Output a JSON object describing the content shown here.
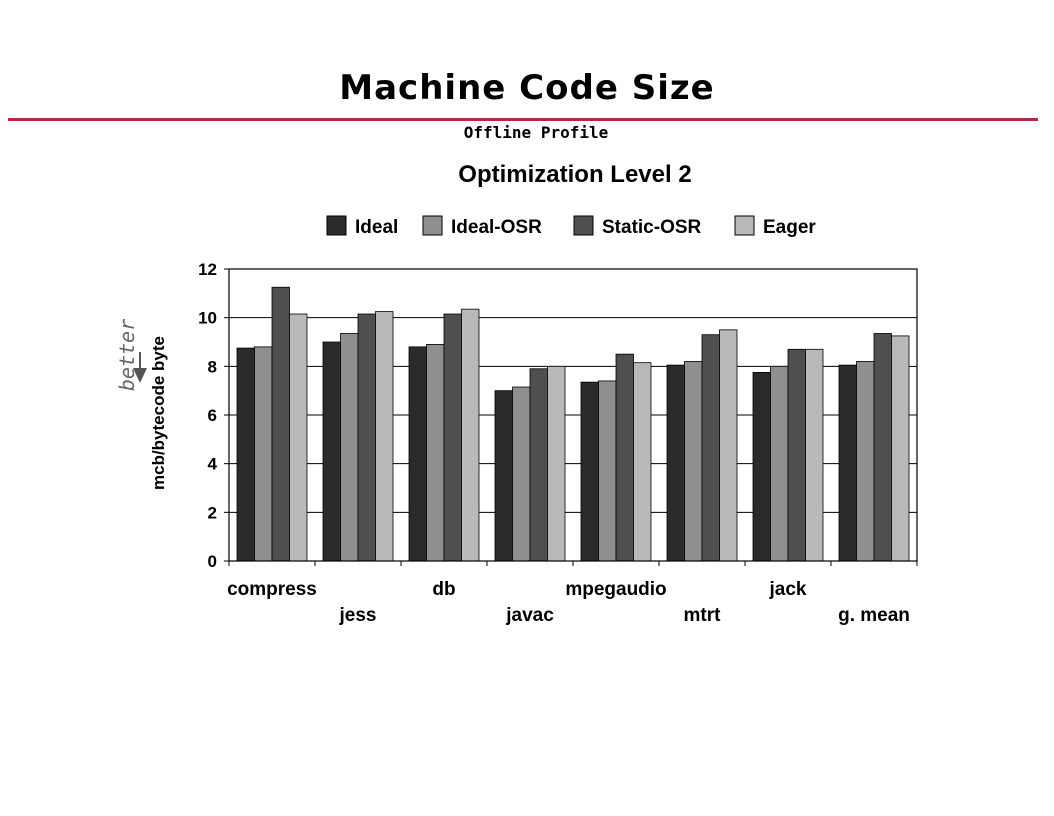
{
  "slide": {
    "title": "Machine Code Size",
    "subtitle": "Offline Profile",
    "accent_color": "#b8264a"
  },
  "chart_data": {
    "type": "bar",
    "title": "Optimization Level 2",
    "ylabel": "mcb/bytecode byte",
    "annotation": "better",
    "annotation_direction": "down",
    "ylim": [
      0,
      12
    ],
    "yticks": [
      0,
      2,
      4,
      6,
      8,
      10,
      12
    ],
    "grid": true,
    "legend_position": "top",
    "categories": [
      "compress",
      "jess",
      "db",
      "javac",
      "mpegaudio",
      "mtrt",
      "jack",
      "g. mean"
    ],
    "series": [
      {
        "name": "Ideal",
        "color": "#2b2b2b",
        "values": [
          8.75,
          9.0,
          8.8,
          7.0,
          7.35,
          8.05,
          7.75,
          8.05
        ]
      },
      {
        "name": "Ideal-OSR",
        "color": "#8f8f8f",
        "values": [
          8.8,
          9.35,
          8.9,
          7.15,
          7.4,
          8.2,
          8.0,
          8.2
        ]
      },
      {
        "name": "Static-OSR",
        "color": "#4f4f4f",
        "values": [
          11.25,
          10.15,
          10.15,
          7.9,
          8.5,
          9.3,
          8.7,
          9.35
        ]
      },
      {
        "name": "Eager",
        "color": "#b9b9b9",
        "values": [
          10.15,
          10.25,
          10.35,
          8.0,
          8.15,
          9.5,
          8.7,
          9.25
        ]
      }
    ]
  }
}
